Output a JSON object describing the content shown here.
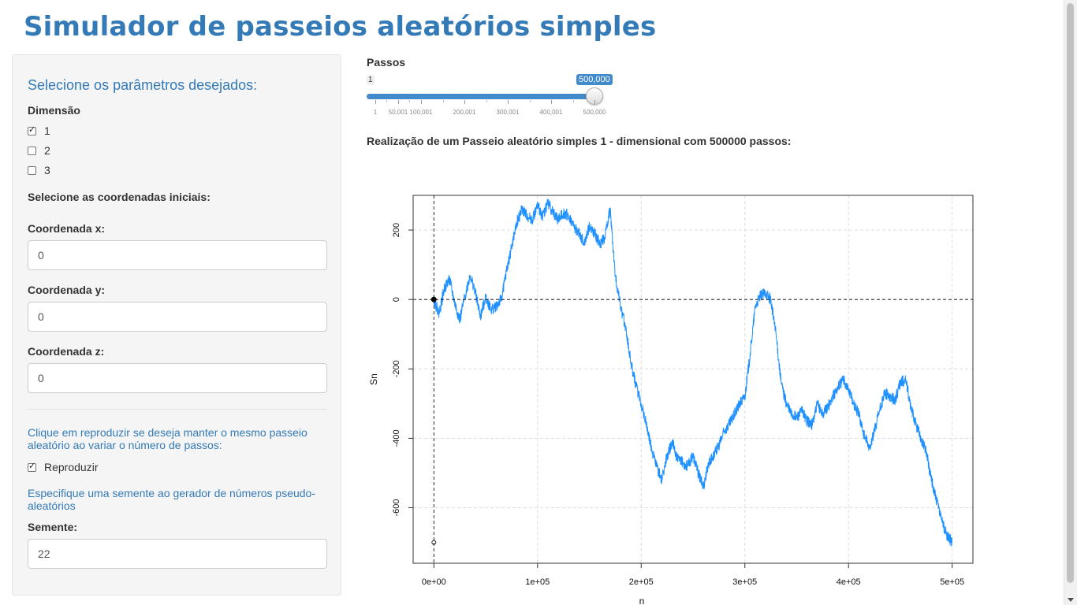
{
  "app": {
    "title": "Simulador de passeios aleatórios simples"
  },
  "sidebar": {
    "heading": "Selecione os parâmetros desejados:",
    "dimension": {
      "label": "Dimensão",
      "options": [
        {
          "label": "1",
          "checked": true
        },
        {
          "label": "2",
          "checked": false
        },
        {
          "label": "3",
          "checked": false
        }
      ]
    },
    "coords_heading": "Selecione as coordenadas iniciais:",
    "coord_x": {
      "label": "Coordenada x:",
      "value": "0"
    },
    "coord_y": {
      "label": "Coordenada y:",
      "value": "0"
    },
    "coord_z": {
      "label": "Coordenada z:",
      "value": "0"
    },
    "reproduce_help": "Clique em reproduzir se deseja manter o mesmo passeio aleatório ao variar o número de passos:",
    "reproduce_checkbox": {
      "label": "Reproduzir",
      "checked": true
    },
    "seed_help": "Especifique uma semente ao gerador de números pseudo-aleatórios",
    "seed": {
      "label": "Semente:",
      "value": "22"
    }
  },
  "slider": {
    "label": "Passos",
    "min_label": "1",
    "value_label": "500,000",
    "min": 1,
    "max": 500000,
    "value": 500000,
    "tick_labels": [
      "1",
      "50,001",
      "100,001",
      "200,001",
      "300,001",
      "400,001",
      "500,000"
    ]
  },
  "plot": {
    "title": "Realização de um Passeio aleatório simples 1 - dimensional com 500000 passos:"
  },
  "chart_data": {
    "type": "line",
    "title": "",
    "xlabel": "n",
    "ylabel": "Sn",
    "xlim": [
      -20000,
      520000
    ],
    "ylim": [
      -760,
      300
    ],
    "x_ticks": [
      0,
      100000,
      200000,
      300000,
      400000,
      500000
    ],
    "x_tick_labels": [
      "0e+00",
      "1e+05",
      "2e+05",
      "3e+05",
      "4e+05",
      "5e+05"
    ],
    "y_ticks": [
      -600,
      -400,
      -200,
      0,
      200
    ],
    "y_tick_labels": [
      "-600",
      "-400",
      "-200",
      "0",
      "200"
    ],
    "grid": true,
    "line_color": "#1e90ff",
    "start_point": {
      "x": 0,
      "y": 0
    },
    "reference_lines": {
      "vertical_x": 0,
      "horizontal_y": 0
    },
    "marker": {
      "x": 0,
      "y": -700
    },
    "series": [
      {
        "name": "Sn",
        "x": [
          0,
          5000,
          10000,
          15000,
          20000,
          25000,
          30000,
          35000,
          40000,
          45000,
          50000,
          55000,
          60000,
          65000,
          70000,
          75000,
          80000,
          85000,
          90000,
          95000,
          100000,
          105000,
          110000,
          115000,
          120000,
          125000,
          130000,
          135000,
          140000,
          145000,
          150000,
          155000,
          160000,
          165000,
          170000,
          175000,
          180000,
          185000,
          190000,
          195000,
          200000,
          205000,
          210000,
          215000,
          220000,
          225000,
          230000,
          235000,
          240000,
          245000,
          250000,
          255000,
          260000,
          265000,
          270000,
          275000,
          280000,
          285000,
          290000,
          295000,
          300000,
          305000,
          310000,
          315000,
          320000,
          325000,
          330000,
          335000,
          340000,
          345000,
          350000,
          355000,
          360000,
          365000,
          370000,
          375000,
          380000,
          385000,
          390000,
          395000,
          400000,
          405000,
          410000,
          415000,
          420000,
          425000,
          430000,
          435000,
          440000,
          445000,
          450000,
          455000,
          460000,
          465000,
          470000,
          475000,
          480000,
          485000,
          490000,
          495000,
          500000
        ],
        "values": [
          0,
          -40,
          30,
          60,
          -10,
          -60,
          10,
          70,
          20,
          -50,
          10,
          -30,
          -20,
          0,
          80,
          150,
          220,
          260,
          240,
          230,
          270,
          240,
          280,
          250,
          230,
          250,
          240,
          210,
          190,
          160,
          210,
          190,
          160,
          180,
          260,
          70,
          -20,
          -80,
          -180,
          -250,
          -300,
          -360,
          -430,
          -480,
          -520,
          -450,
          -410,
          -460,
          -470,
          -480,
          -450,
          -500,
          -540,
          -470,
          -450,
          -420,
          -380,
          -360,
          -330,
          -300,
          -280,
          -160,
          -20,
          10,
          20,
          0,
          -100,
          -240,
          -300,
          -330,
          -340,
          -320,
          -350,
          -360,
          -300,
          -330,
          -310,
          -280,
          -250,
          -230,
          -260,
          -300,
          -330,
          -390,
          -430,
          -380,
          -320,
          -270,
          -280,
          -290,
          -240,
          -230,
          -310,
          -360,
          -400,
          -440,
          -520,
          -580,
          -640,
          -680,
          -700
        ]
      }
    ]
  }
}
